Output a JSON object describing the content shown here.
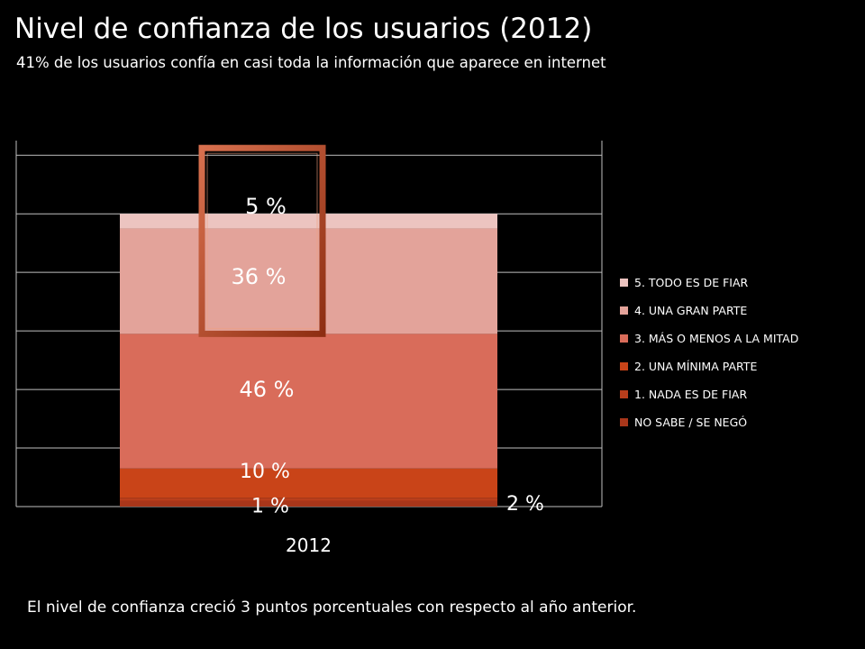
{
  "slide": {
    "title": "Nivel de confianza de los usuarios (2012)",
    "subtitle": "41% de los usuarios confía en casi toda la información que aparece en internet",
    "footnote": "El nivel de confianza creció 3 puntos porcentuales con respecto al año anterior."
  },
  "chart_data": {
    "type": "bar",
    "stacked": true,
    "normalized_percent": true,
    "categories": [
      "2012"
    ],
    "series": [
      {
        "name": "NO SABE / SE NEGÓ",
        "values": [
          2
        ],
        "color": "#a8361a",
        "label": "2 %"
      },
      {
        "name": "1. NADA ES DE FIAR",
        "values": [
          1
        ],
        "color": "#b83e1c",
        "label": "1 %"
      },
      {
        "name": "2. UNA MÍNIMA PARTE",
        "values": [
          10
        ],
        "color": "#c94418",
        "label": "10 %"
      },
      {
        "name": "3. MÁS  O MENOS A LA MITAD",
        "values": [
          46
        ],
        "color": "#d96c5a",
        "label": "46 %"
      },
      {
        "name": "4. UNA GRAN PARTE",
        "values": [
          36
        ],
        "color": "#e3a39a",
        "label": "36 %"
      },
      {
        "name": "5. TODO ES DE FIAR",
        "values": [
          5
        ],
        "color": "#ecc4c0",
        "label": "5 %"
      }
    ],
    "ylim": [
      0,
      100
    ],
    "grid": true,
    "legend_position": "right",
    "highlight": {
      "series": [
        "4. UNA GRAN PARTE",
        "5. TODO ES DE FIAR"
      ],
      "color": "#c0502e"
    }
  }
}
